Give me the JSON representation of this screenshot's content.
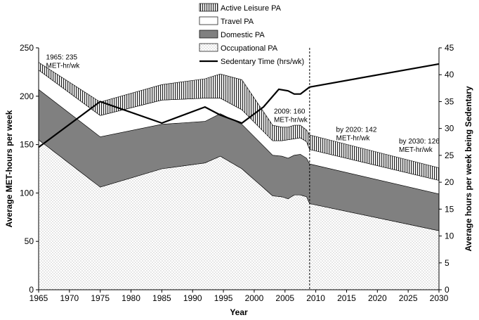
{
  "chart_data": {
    "type": "area",
    "xlabel": "Year",
    "ylabel": "Average MET-hours per week",
    "y2label": "Average hours per week being Sedentary",
    "xlim": [
      1965,
      2030
    ],
    "ylim": [
      0,
      250
    ],
    "y2lim": [
      0,
      45
    ],
    "x_ticks": [
      "1965",
      "1970",
      "1975",
      "1980",
      "1985",
      "1990",
      "1995",
      "2000",
      "2005",
      "2010",
      "2015",
      "2020",
      "2025",
      "2030"
    ],
    "y_ticks": [
      "0",
      "50",
      "100",
      "150",
      "200",
      "250"
    ],
    "y2_ticks": [
      "0",
      "5",
      "10",
      "15",
      "20",
      "25",
      "30",
      "35",
      "40",
      "45"
    ],
    "legend": [
      {
        "name": "Active Leisure PA",
        "pattern": "vertical-hatch"
      },
      {
        "name": "Travel PA",
        "pattern": "white"
      },
      {
        "name": "Domestic PA",
        "pattern": "gray"
      },
      {
        "name": "Occupational PA",
        "pattern": "dots"
      },
      {
        "name": "Sedentary Time (hrs/wk)",
        "pattern": "line"
      }
    ],
    "legend_position": "top-center",
    "projection_line_year": 2009,
    "stack_x": [
      1965,
      1975,
      1985,
      1992,
      1994.5,
      1998,
      2003,
      2004.5,
      2005.5,
      2006.5,
      2007.5,
      2008.5,
      2009,
      2030
    ],
    "series": [
      {
        "name": "Occupational PA",
        "values": [
          155,
          106,
          125,
          131,
          138,
          125,
          97,
          96,
          94,
          98,
          98,
          96,
          89,
          61
        ]
      },
      {
        "name": "Domestic PA",
        "values": [
          52,
          52,
          46,
          43,
          44,
          46,
          42,
          42,
          42,
          41,
          42,
          40,
          41,
          38
        ]
      },
      {
        "name": "Travel PA",
        "values": [
          20,
          22,
          25,
          24,
          16,
          15,
          15,
          16,
          19,
          17,
          17,
          17,
          15,
          14
        ]
      },
      {
        "name": "Active Leisure PA",
        "values": [
          8,
          14,
          16,
          20,
          25,
          31,
          16,
          14,
          13,
          14,
          13,
          12,
          15,
          13
        ]
      }
    ],
    "sedentary": {
      "name": "Sedentary Time (hrs/wk)",
      "x": [
        1965,
        1975,
        1985,
        1992,
        1994.5,
        1998,
        2001.5,
        2004,
        2005.5,
        2006.5,
        2007.5,
        2009,
        2030
      ],
      "values": [
        26.5,
        35,
        31,
        34,
        32.5,
        31,
        34,
        37.3,
        37,
        36.4,
        36.4,
        37.7,
        42
      ]
    },
    "annotations": [
      {
        "line1": "1965: 235",
        "line2": "MET-hr/wk",
        "x": 1966.2,
        "y": 238
      },
      {
        "line1": "2009: 160",
        "line2": "MET-hr/wk",
        "x": 2003.2,
        "y": 182
      },
      {
        "line1": "by 2020: 142",
        "line2": "MET-hr/wk",
        "x": 2013.3,
        "y": 163
      },
      {
        "line1": "by 2030: 126",
        "line2": "MET-hr/wk",
        "x": 2023.5,
        "y": 151
      }
    ]
  }
}
